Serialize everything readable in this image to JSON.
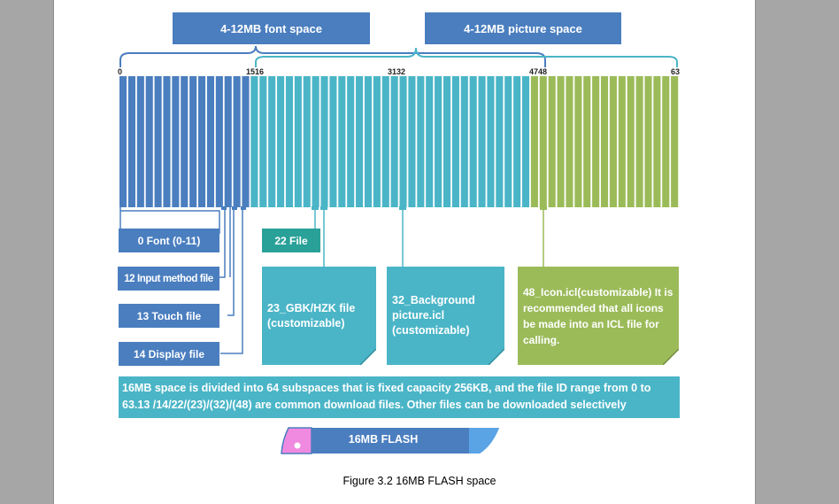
{
  "headers": {
    "font_space": "4-12MB font space",
    "picture_space": "4-12MB picture space"
  },
  "ticks": {
    "t0": "0",
    "t1516": "1516",
    "t3132": "3132",
    "t4748": "4748",
    "t63": "63"
  },
  "flash": {
    "subspace_count": 64,
    "group_colors": [
      "#4a7ebf",
      "#4ab5c7",
      "#9bbb59"
    ],
    "group_sizes": [
      15,
      32,
      17
    ]
  },
  "left_boxes": {
    "font": "0 Font (0-11)",
    "input_method": "12 Input method file",
    "touch": "13 Touch file",
    "display": "14 Display file"
  },
  "file22": "22 File",
  "cards": {
    "gbk": "23_GBK/HZK file (customizable)",
    "background": "32_Background picture.icl (customizable)",
    "icon": "48_Icon.icl(customizable) It is recommended that all icons be made into an ICL file for calling."
  },
  "note": "16MB space is divided into 64 subspaces that is fixed capacity 256KB, and the file ID range from 0 to 63.13 /14/22/(23)/(32)/(48) are common download files. Other files can be downloaded selectively",
  "disk_label": "16MB FLASH",
  "caption": "Figure 3.2 16MB FLASH space"
}
